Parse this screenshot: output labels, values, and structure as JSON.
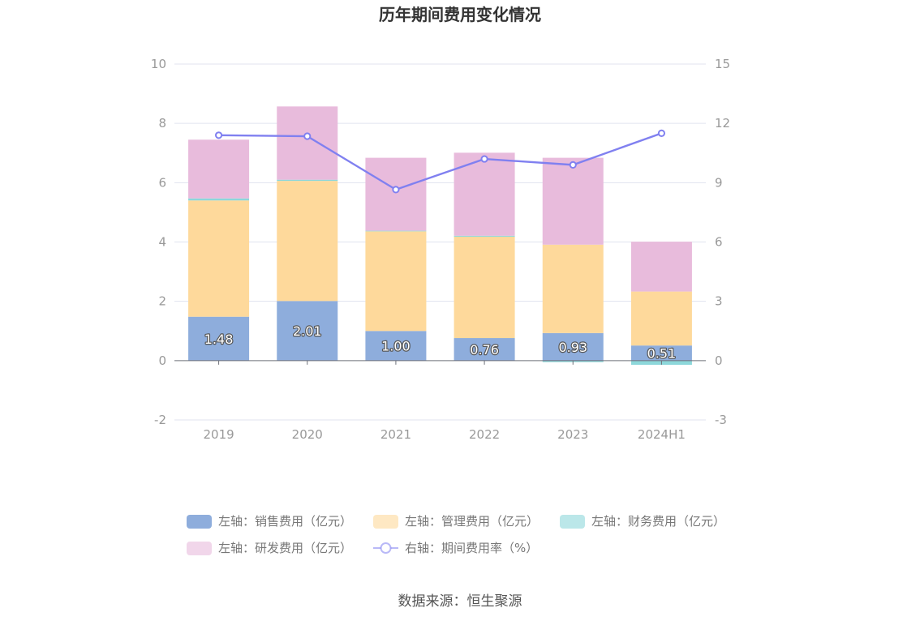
{
  "chart_data": {
    "type": "bar",
    "title": "历年期间费用变化情况",
    "categories": [
      "2019",
      "2020",
      "2021",
      "2022",
      "2023",
      "2024H1"
    ],
    "left_axis": {
      "ylim": [
        -2,
        10
      ],
      "ticks": [
        "-2",
        "0",
        "2",
        "4",
        "6",
        "8",
        "10"
      ]
    },
    "right_axis": {
      "ylim": [
        -3,
        15
      ],
      "ticks": [
        "-3",
        "0",
        "3",
        "6",
        "9",
        "12",
        "15"
      ]
    },
    "series": [
      {
        "name": "左轴：销售费用（亿元）",
        "type": "bar",
        "axis": "left",
        "color": "#8eaddc",
        "values": [
          1.48,
          2.01,
          1.0,
          0.76,
          0.93,
          0.51
        ],
        "labels": [
          "1.48",
          "2.01",
          "1.00",
          "0.76",
          "0.93",
          "0.51"
        ]
      },
      {
        "name": "左轴：管理费用（亿元）",
        "type": "bar",
        "axis": "left",
        "color": "#fed99b",
        "values": [
          3.92,
          4.05,
          3.36,
          3.42,
          2.98,
          1.82
        ]
      },
      {
        "name": "左轴：财务费用（亿元）",
        "type": "bar",
        "axis": "left",
        "color": "#8dd7da",
        "values": [
          0.07,
          0.04,
          0.02,
          0.03,
          -0.05,
          -0.14
        ]
      },
      {
        "name": "左轴：研发费用（亿元）",
        "type": "bar",
        "axis": "left",
        "color": "#e8bbdc",
        "values": [
          1.98,
          2.47,
          2.46,
          2.8,
          2.93,
          1.68
        ]
      },
      {
        "name": "右轴：期间费用率（%）",
        "type": "line",
        "axis": "right",
        "color": "#8080f0",
        "values": [
          11.4,
          11.35,
          8.65,
          10.2,
          9.9,
          11.5
        ]
      }
    ],
    "legend_position": "bottom",
    "grid": true
  },
  "source_text": "数据来源：恒生聚源"
}
